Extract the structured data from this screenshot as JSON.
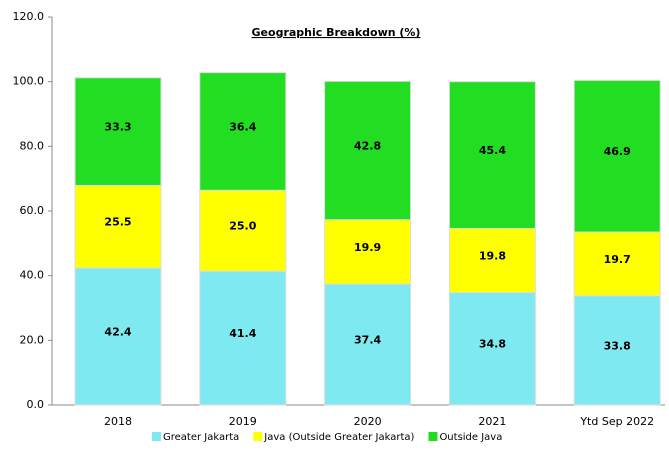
{
  "chart_data": {
    "type": "stacked_bar",
    "title": "Geographic Breakdown  (%)",
    "categories": [
      "2018",
      "2019",
      "2020",
      "2021",
      "Ytd Sep 2022"
    ],
    "series": [
      {
        "name": "Greater Jakarta",
        "color": "#7fe9f2",
        "values": [
          42.4,
          41.4,
          37.4,
          34.8,
          33.8
        ],
        "value_labels": [
          "42.4",
          "41.4",
          "37.4",
          "34.8",
          "33.8"
        ]
      },
      {
        "name": "Java (Outside Greater Jakarta)",
        "color": "#ffff00",
        "values": [
          25.5,
          25.0,
          19.9,
          19.8,
          19.7
        ],
        "value_labels": [
          "25.5",
          "25.0",
          "19.9",
          "19.8",
          "19.7"
        ]
      },
      {
        "name": "Outside Java",
        "color": "#22dd22",
        "values": [
          33.3,
          36.4,
          42.8,
          45.4,
          46.9
        ],
        "value_labels": [
          "33.3",
          "36.4",
          "42.8",
          "45.4",
          "46.9"
        ]
      }
    ],
    "ylim": [
      0,
      120
    ],
    "yticks": [
      {
        "value": 0,
        "label": "0.0"
      },
      {
        "value": 20,
        "label": "20.0"
      },
      {
        "value": 40,
        "label": "40.0"
      },
      {
        "value": 60,
        "label": "60.0"
      },
      {
        "value": 80,
        "label": "80.0"
      },
      {
        "value": 100,
        "label": "100.0"
      },
      {
        "value": 120,
        "label": "120.0"
      }
    ],
    "legend": "bottom"
  }
}
